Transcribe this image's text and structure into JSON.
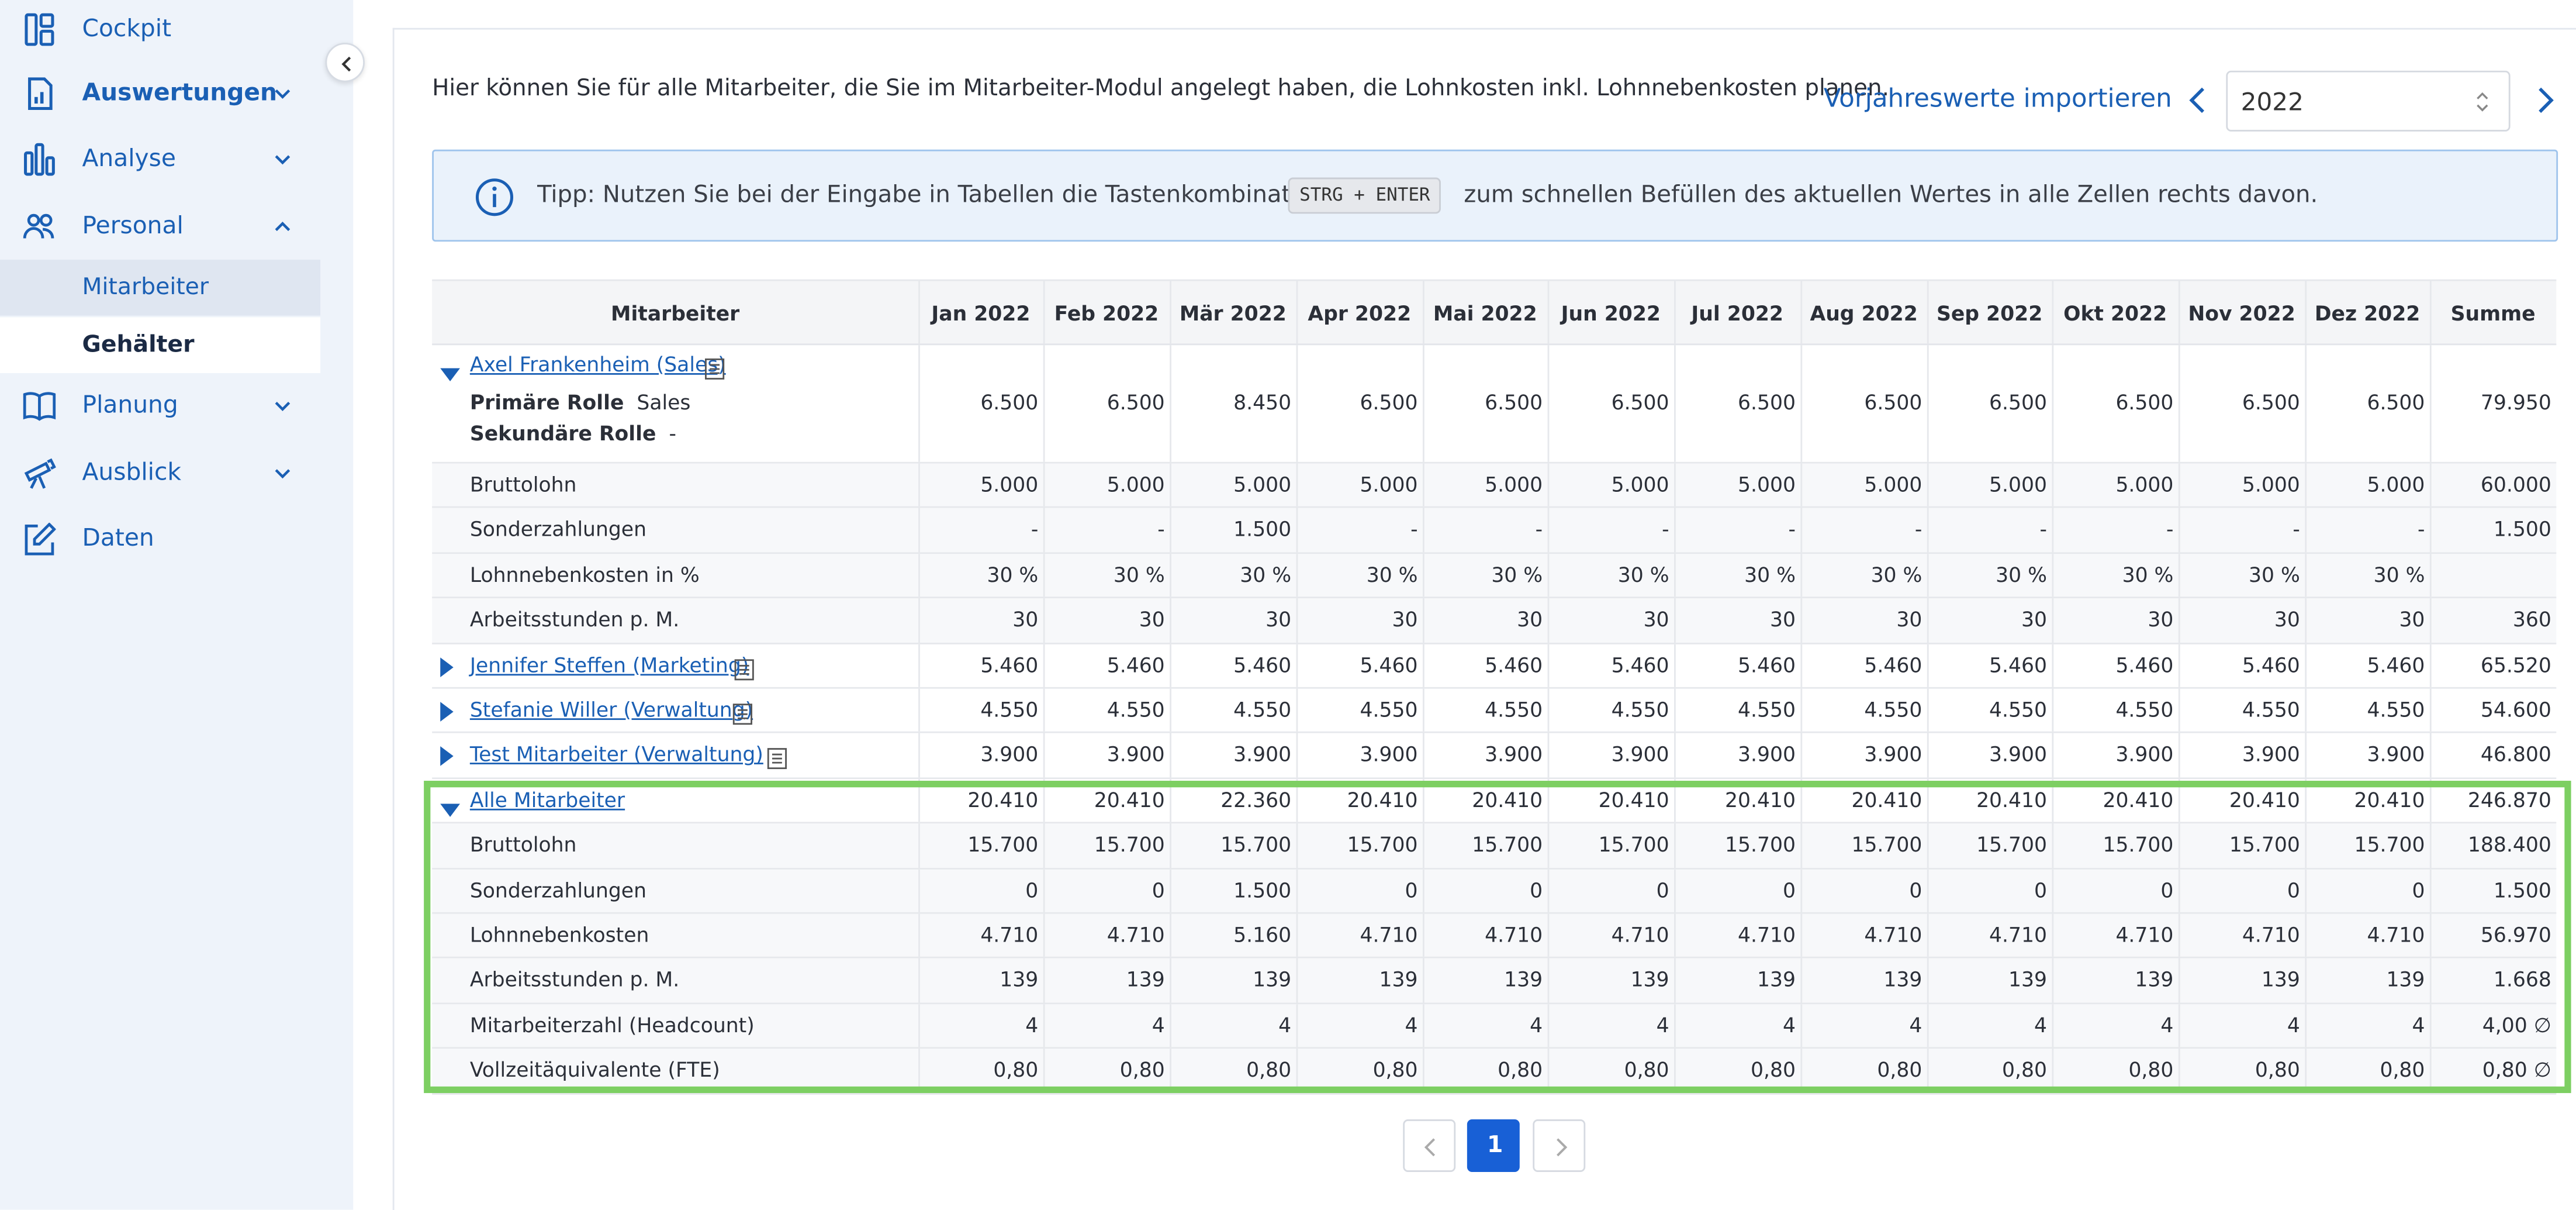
{
  "sidebar": {
    "items": [
      {
        "label": "Cockpit",
        "icon": "dashboard-icon"
      },
      {
        "label": "Auswertungen",
        "icon": "report-icon"
      },
      {
        "label": "Analyse",
        "icon": "bar-chart-icon"
      },
      {
        "label": "Personal",
        "icon": "people-icon"
      },
      {
        "label": "Planung",
        "icon": "book-icon"
      },
      {
        "label": "Ausblick",
        "icon": "telescope-icon"
      },
      {
        "label": "Daten",
        "icon": "edit-icon"
      }
    ],
    "sub_items": [
      {
        "label": "Mitarbeiter"
      },
      {
        "label": "Gehälter"
      }
    ]
  },
  "header": {
    "intro": "Hier können Sie für alle Mitarbeiter, die Sie im Mitarbeiter-Modul angelegt haben, die Lohnkosten inkl. Lohnnebenkosten planen.",
    "import_label": "Vorjahreswerte importieren",
    "year": "2022"
  },
  "tip": {
    "before": "Tipp: Nutzen Sie bei der Eingabe in Tabellen die Tastenkombination",
    "kbd": "STRG + ENTER",
    "after": "zum schnellen Befüllen des aktuellen Wertes in alle Zellen rechts davon."
  },
  "table": {
    "columns": [
      "Mitarbeiter",
      "Jan 2022",
      "Feb 2022",
      "Mär 2022",
      "Apr 2022",
      "Mai 2022",
      "Jun 2022",
      "Jul 2022",
      "Aug 2022",
      "Sep 2022",
      "Okt 2022",
      "Nov 2022",
      "Dez 2022",
      "Summe"
    ],
    "axel": {
      "name": "Axel Frankenheim (Sales)",
      "primary_label": "Primäre Rolle",
      "primary_value": "Sales",
      "secondary_label": "Sekundäre Rolle",
      "secondary_value": "-",
      "values": [
        "6.500",
        "6.500",
        "8.450",
        "6.500",
        "6.500",
        "6.500",
        "6.500",
        "6.500",
        "6.500",
        "6.500",
        "6.500",
        "6.500",
        "79.950"
      ],
      "details": [
        {
          "label": "Bruttolohn",
          "values": [
            "5.000",
            "5.000",
            "5.000",
            "5.000",
            "5.000",
            "5.000",
            "5.000",
            "5.000",
            "5.000",
            "5.000",
            "5.000",
            "5.000",
            "60.000"
          ]
        },
        {
          "label": "Sonderzahlungen",
          "values": [
            "-",
            "-",
            "1.500",
            "-",
            "-",
            "-",
            "-",
            "-",
            "-",
            "-",
            "-",
            "-",
            "1.500"
          ]
        },
        {
          "label": "Lohnnebenkosten in %",
          "values": [
            "30 %",
            "30 %",
            "30 %",
            "30 %",
            "30 %",
            "30 %",
            "30 %",
            "30 %",
            "30 %",
            "30 %",
            "30 %",
            "30 %",
            ""
          ]
        },
        {
          "label": "Arbeitsstunden p. M.",
          "values": [
            "30",
            "30",
            "30",
            "30",
            "30",
            "30",
            "30",
            "30",
            "30",
            "30",
            "30",
            "30",
            "360"
          ]
        }
      ]
    },
    "employees": [
      {
        "name": "Jennifer Steffen (Marketing)",
        "values": [
          "5.460",
          "5.460",
          "5.460",
          "5.460",
          "5.460",
          "5.460",
          "5.460",
          "5.460",
          "5.460",
          "5.460",
          "5.460",
          "5.460",
          "65.520"
        ]
      },
      {
        "name": "Stefanie Willer (Verwaltung)",
        "values": [
          "4.550",
          "4.550",
          "4.550",
          "4.550",
          "4.550",
          "4.550",
          "4.550",
          "4.550",
          "4.550",
          "4.550",
          "4.550",
          "4.550",
          "54.600"
        ]
      },
      {
        "name": "Test Mitarbeiter (Verwaltung)",
        "values": [
          "3.900",
          "3.900",
          "3.900",
          "3.900",
          "3.900",
          "3.900",
          "3.900",
          "3.900",
          "3.900",
          "3.900",
          "3.900",
          "3.900",
          "46.800"
        ]
      }
    ],
    "all": {
      "name": "Alle Mitarbeiter",
      "values": [
        "20.410",
        "20.410",
        "22.360",
        "20.410",
        "20.410",
        "20.410",
        "20.410",
        "20.410",
        "20.410",
        "20.410",
        "20.410",
        "20.410",
        "246.870"
      ],
      "details": [
        {
          "label": "Bruttolohn",
          "values": [
            "15.700",
            "15.700",
            "15.700",
            "15.700",
            "15.700",
            "15.700",
            "15.700",
            "15.700",
            "15.700",
            "15.700",
            "15.700",
            "15.700",
            "188.400"
          ]
        },
        {
          "label": "Sonderzahlungen",
          "values": [
            "0",
            "0",
            "1.500",
            "0",
            "0",
            "0",
            "0",
            "0",
            "0",
            "0",
            "0",
            "0",
            "1.500"
          ]
        },
        {
          "label": "Lohnnebenkosten",
          "values": [
            "4.710",
            "4.710",
            "5.160",
            "4.710",
            "4.710",
            "4.710",
            "4.710",
            "4.710",
            "4.710",
            "4.710",
            "4.710",
            "4.710",
            "56.970"
          ]
        },
        {
          "label": "Arbeitsstunden p. M.",
          "values": [
            "139",
            "139",
            "139",
            "139",
            "139",
            "139",
            "139",
            "139",
            "139",
            "139",
            "139",
            "139",
            "1.668"
          ]
        },
        {
          "label": "Mitarbeiterzahl (Headcount)",
          "values": [
            "4",
            "4",
            "4",
            "4",
            "4",
            "4",
            "4",
            "4",
            "4",
            "4",
            "4",
            "4",
            "4,00 ∅"
          ]
        },
        {
          "label": "Vollzeitäquivalente (FTE)",
          "values": [
            "0,80",
            "0,80",
            "0,80",
            "0,80",
            "0,80",
            "0,80",
            "0,80",
            "0,80",
            "0,80",
            "0,80",
            "0,80",
            "0,80",
            "0,80 ∅"
          ]
        }
      ]
    }
  },
  "pagination": {
    "current": "1"
  },
  "colors": {
    "accent": "#1a5fb4",
    "highlight": "#7dcf62",
    "sidebar_bg": "#eef3fa",
    "tip_bg": "#eaf2fb"
  }
}
